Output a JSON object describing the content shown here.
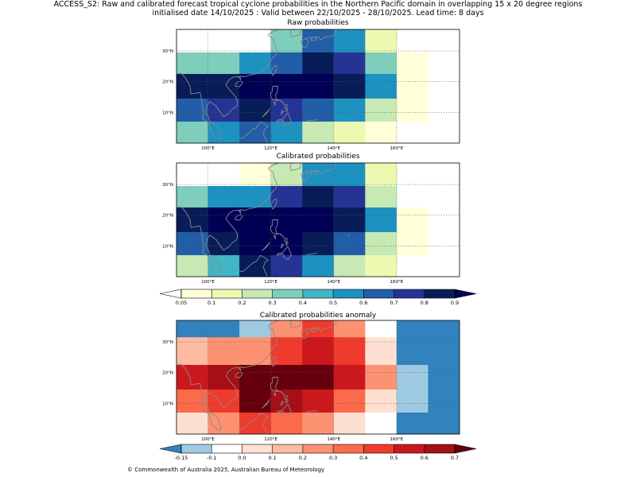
{
  "figure": {
    "title_line1": "ACCESS_S2: Raw and calibrated forecast tropical cyclone probabilities in the Northern Pacific domain in overlapping 15 x 20 degree regions",
    "title_line2": "initialised date 14/10/2025 :  Valid between 22/10/2025 - 28/10/2025. Lead time: 8 days",
    "footer": "© Commonwealth of Australia 2025, Australian Bureau of Meteorology"
  },
  "chart_data": [
    {
      "type": "heatmap",
      "title": "Raw probabilities",
      "xlim": [
        90,
        180
      ],
      "ylim": [
        0,
        37
      ],
      "x_ticks": [
        "100°E",
        "120°E",
        "140°E",
        "160°E"
      ],
      "y_ticks": [
        "10°N",
        "20°N",
        "30°N"
      ],
      "row_bounds": [
        [
          29.5,
          37
        ],
        [
          22.5,
          29.5
        ],
        [
          14.5,
          22.5
        ],
        [
          7,
          14.5
        ],
        [
          0,
          7
        ]
      ],
      "col_bounds": [
        [
          90,
          100
        ],
        [
          100,
          110
        ],
        [
          110,
          120
        ],
        [
          120,
          130
        ],
        [
          130,
          140
        ],
        [
          140,
          150
        ],
        [
          150,
          160
        ],
        [
          160,
          170
        ],
        [
          170,
          180
        ]
      ],
      "values": [
        [
          null,
          null,
          null,
          0.35,
          0.65,
          0.55,
          0.15,
          null,
          null
        ],
        [
          0.35,
          0.35,
          0.55,
          0.65,
          0.85,
          0.75,
          0.35,
          0.05,
          null
        ],
        [
          0.85,
          0.85,
          0.95,
          0.95,
          0.95,
          0.85,
          0.55,
          0.05,
          null
        ],
        [
          0.65,
          0.75,
          0.85,
          0.75,
          0.65,
          0.55,
          0.25,
          0.05,
          null
        ],
        [
          0.35,
          0.55,
          0.65,
          0.55,
          0.25,
          0.15,
          0.05,
          null,
          null
        ]
      ]
    },
    {
      "type": "heatmap",
      "title": "Calibrated probabilities",
      "xlim": [
        90,
        180
      ],
      "ylim": [
        0,
        37
      ],
      "x_ticks": [
        "100°E",
        "120°E",
        "140°E",
        "160°E"
      ],
      "y_ticks": [
        "10°N",
        "20°N",
        "30°N"
      ],
      "row_bounds": [
        [
          29.5,
          37
        ],
        [
          22.5,
          29.5
        ],
        [
          14.5,
          22.5
        ],
        [
          7,
          14.5
        ],
        [
          0,
          7
        ]
      ],
      "col_bounds": [
        [
          90,
          100
        ],
        [
          100,
          110
        ],
        [
          110,
          120
        ],
        [
          120,
          130
        ],
        [
          130,
          140
        ],
        [
          140,
          150
        ],
        [
          150,
          160
        ],
        [
          160,
          170
        ],
        [
          170,
          180
        ]
      ],
      "values": [
        [
          null,
          null,
          0.05,
          0.25,
          0.55,
          0.55,
          0.15,
          null,
          null
        ],
        [
          0.35,
          0.55,
          0.55,
          0.75,
          0.85,
          0.75,
          0.25,
          null,
          null
        ],
        [
          0.85,
          0.95,
          0.95,
          0.95,
          0.95,
          0.85,
          0.55,
          0.05,
          null
        ],
        [
          0.65,
          0.85,
          0.95,
          0.95,
          0.85,
          0.65,
          0.25,
          0.05,
          null
        ],
        [
          0.25,
          0.45,
          0.85,
          0.75,
          0.55,
          0.25,
          0.15,
          null,
          null
        ]
      ]
    },
    {
      "type": "colorbar",
      "name": "probability",
      "ticks": [
        "0.05",
        "0.1",
        "0.2",
        "0.3",
        "0.4",
        "0.5",
        "0.6",
        "0.7",
        "0.8",
        "0.9"
      ],
      "extend": "both",
      "colors": [
        "#ffffd9",
        "#edf8b1",
        "#c7e9b4",
        "#7fcdbb",
        "#41b6c4",
        "#1d91c0",
        "#225ea8",
        "#253494",
        "#081d58"
      ],
      "under_color": "#ffffff",
      "over_color": "#000055"
    },
    {
      "type": "heatmap",
      "title": "Calibrated probabilities anomaly",
      "xlim": [
        90,
        180
      ],
      "ylim": [
        0,
        37
      ],
      "x_ticks": [
        "100°E",
        "120°E",
        "140°E",
        "160°E"
      ],
      "y_ticks": [
        "10°N",
        "20°N",
        "30°N"
      ],
      "row_bounds": [
        [
          31.5,
          37
        ],
        [
          22.5,
          31.5
        ],
        [
          14.5,
          22.5
        ],
        [
          7,
          14.5
        ],
        [
          0,
          7
        ]
      ],
      "col_bounds": [
        [
          90,
          100
        ],
        [
          100,
          110
        ],
        [
          110,
          120
        ],
        [
          120,
          130
        ],
        [
          130,
          140
        ],
        [
          140,
          150
        ],
        [
          150,
          160
        ],
        [
          160,
          170
        ],
        [
          170,
          180
        ]
      ],
      "values": [
        [
          -0.2,
          -0.2,
          -0.12,
          0.25,
          0.45,
          0.25,
          -0.05,
          -0.2,
          -0.2
        ],
        [
          0.15,
          0.25,
          0.25,
          0.45,
          0.55,
          0.45,
          0.05,
          -0.2,
          -0.2
        ],
        [
          0.55,
          0.65,
          0.75,
          0.75,
          0.75,
          0.55,
          0.25,
          -0.12,
          -0.2
        ],
        [
          0.35,
          0.45,
          0.75,
          0.65,
          0.55,
          0.35,
          0.05,
          -0.12,
          -0.2
        ],
        [
          0.05,
          0.25,
          0.45,
          0.35,
          0.25,
          0.05,
          -0.05,
          -0.2,
          -0.2
        ]
      ]
    },
    {
      "type": "colorbar",
      "name": "anomaly",
      "ticks": [
        "-0.15",
        "-0.1",
        "0.0",
        "0.1",
        "0.2",
        "0.3",
        "0.4",
        "0.5",
        "0.6",
        "0.7"
      ],
      "extend": "both",
      "colors": [
        "#9ecae1",
        "#ffffff",
        "#fee0d2",
        "#fcbba1",
        "#fc9272",
        "#fb6a4a",
        "#ef3b2c",
        "#cb181d",
        "#a50f15"
      ],
      "under_color": "#3182bd",
      "over_color": "#67000d"
    }
  ]
}
